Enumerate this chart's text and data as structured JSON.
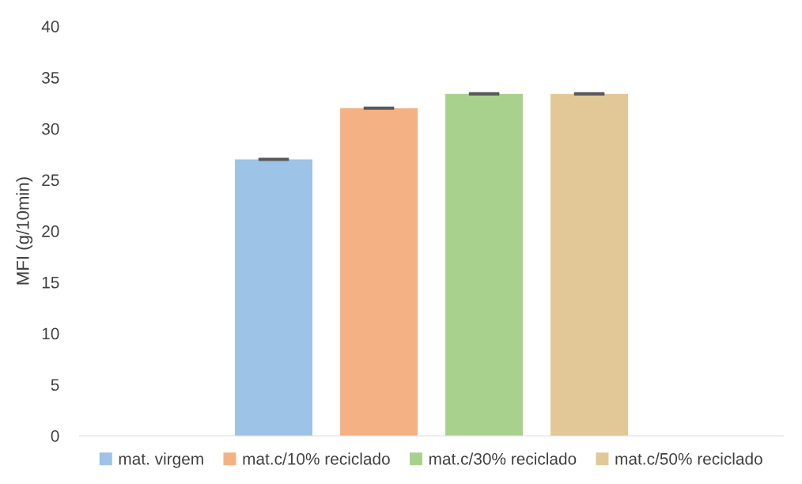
{
  "chart_data": {
    "type": "bar",
    "ylabel": "MFI (g/10min)",
    "categories": [
      null
    ],
    "series": [
      {
        "name": "mat. virgem",
        "color": "#9dc3e6",
        "values": [
          27.0
        ],
        "errors": [
          0.05
        ]
      },
      {
        "name": "mat.c/10% reciclado",
        "color": "#f4b183",
        "values": [
          32.0
        ],
        "errors": [
          0.05
        ]
      },
      {
        "name": "mat.c/30% reciclado",
        "color": "#a9d18e",
        "values": [
          33.4
        ],
        "errors": [
          0.05
        ]
      },
      {
        "name": "mat.c/50% reciclado",
        "color": "#e2c797",
        "values": [
          33.4
        ],
        "errors": [
          0.05
        ]
      }
    ],
    "ylim": [
      0,
      40
    ],
    "yticks": [
      0,
      5,
      10,
      15,
      20,
      25,
      30,
      35,
      40
    ],
    "grid": false,
    "legend": "bottom"
  }
}
